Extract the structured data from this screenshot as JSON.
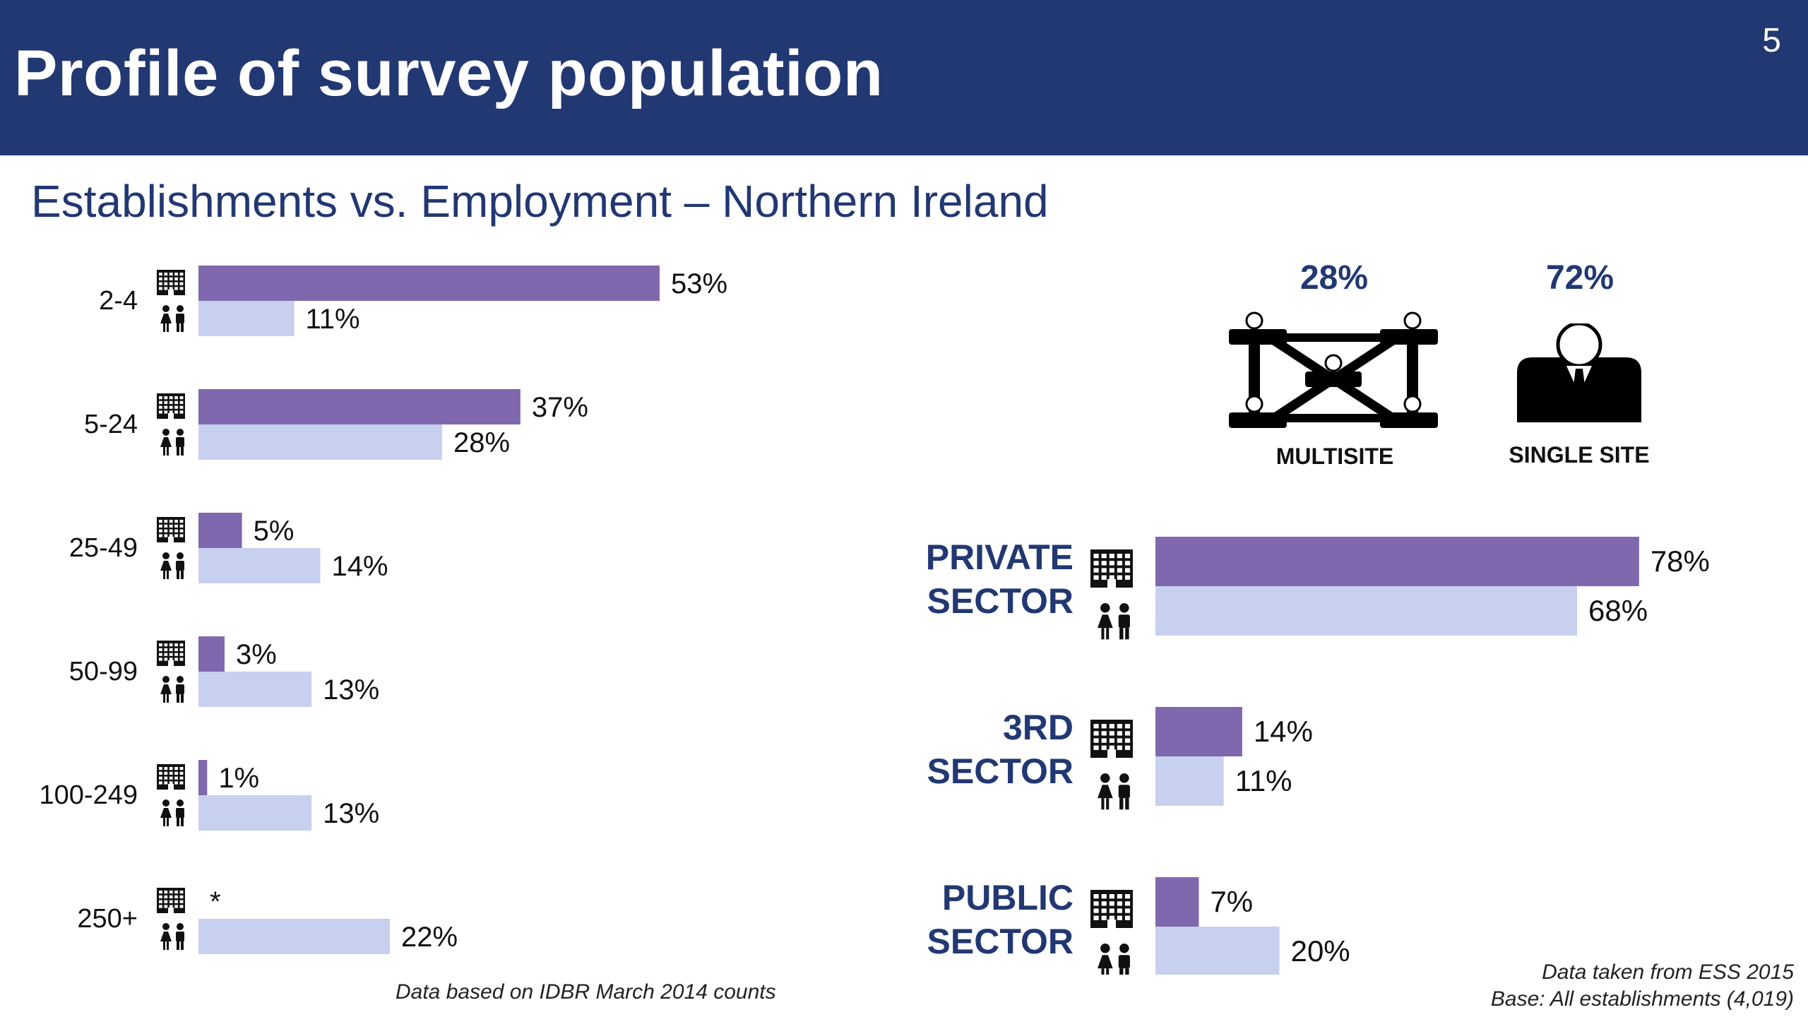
{
  "header": {
    "title": "Profile of survey population",
    "page_number": "5"
  },
  "subtitle": "Establishments vs. Employment – Northern Ireland",
  "colors": {
    "header_bg": "#223873",
    "establishments": "#8068AE",
    "employment": "#C7D0EE",
    "accent_text": "#223873"
  },
  "icons": {
    "establishments": "building-icon",
    "employment": "people-icon"
  },
  "sites": {
    "multisite": {
      "pct": "28%",
      "label": "MULTISITE",
      "icon": "multisite-network-icon"
    },
    "single_site": {
      "pct": "72%",
      "label": "SINGLE SITE",
      "icon": "single-person-icon"
    }
  },
  "chart_data": [
    {
      "type": "bar",
      "orientation": "horizontal",
      "categories": [
        "2-4",
        "5-24",
        "25-49",
        "50-99",
        "100-249",
        "250+"
      ],
      "series": [
        {
          "icon": "building-icon",
          "values": [
            53,
            37,
            5,
            3,
            1,
            null
          ],
          "labels": [
            "53%",
            "37%",
            "5%",
            "3%",
            "1%",
            "*"
          ]
        },
        {
          "icon": "people-icon",
          "values": [
            11,
            28,
            14,
            13,
            13,
            22
          ],
          "labels": [
            "11%",
            "28%",
            "14%",
            "13%",
            "13%",
            "22%"
          ]
        }
      ],
      "note": "Data based on IDBR March 2014 counts"
    },
    {
      "type": "bar",
      "orientation": "horizontal",
      "categories": [
        [
          "PRIVATE",
          "SECTOR"
        ],
        [
          "3RD",
          "SECTOR"
        ],
        [
          "PUBLIC",
          "SECTOR"
        ]
      ],
      "series": [
        {
          "icon": "building-icon",
          "values": [
            78,
            14,
            7
          ],
          "labels": [
            "78%",
            "14%",
            "7%"
          ]
        },
        {
          "icon": "people-icon",
          "values": [
            68,
            11,
            20
          ],
          "labels": [
            "68%",
            "11%",
            "20%"
          ]
        }
      ],
      "note": [
        "Data taken from ESS 2015",
        "Base: All establishments (4,019)"
      ]
    }
  ]
}
